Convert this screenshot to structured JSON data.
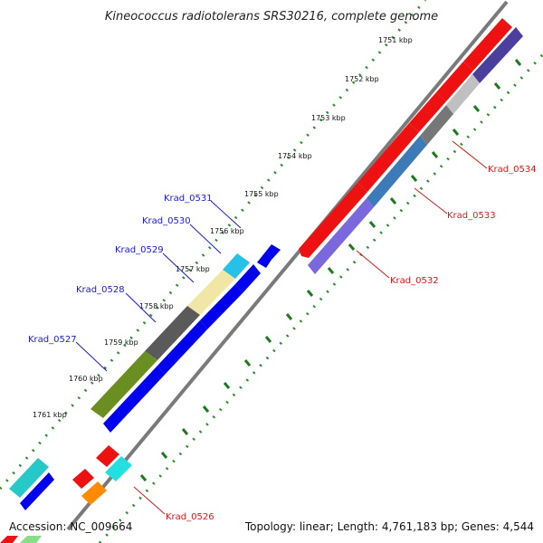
{
  "title": "Kineococcus radiotolerans SRS30216, complete genome",
  "footer": {
    "accession": "Accession: NC_009664",
    "topology": "Topology: linear; Length: 4,761,183 bp; Genes: 4,544"
  },
  "ticks": [
    "1751 kbp",
    "1752 kbp",
    "1753 kbp",
    "1754 kbp",
    "1755 kbp",
    "1756 kbp",
    "1757 kbp",
    "1758 kbp",
    "1759 kbp",
    "1760 kbp",
    "1761 kbp"
  ],
  "gene_labels": {
    "forward": [
      "Krad_0531",
      "Krad_0530",
      "Krad_0529",
      "Krad_0528",
      "Krad_0527"
    ],
    "reverse": [
      "Krad_0534",
      "Krad_0533",
      "Krad_0532",
      "Krad_0526"
    ]
  },
  "colors": {
    "forward_label": "#1a1ad6",
    "reverse_label": "#d61a1a",
    "dotted_track": "#228b22",
    "backbone": "#7a7a7a"
  }
}
